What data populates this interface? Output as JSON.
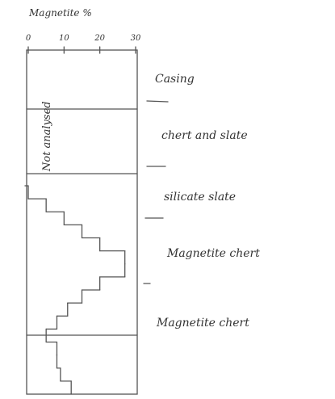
{
  "chart_data": {
    "type": "step",
    "title": "Magnetite %",
    "annotation": "Not analysed",
    "zones": [
      "Casing",
      "chert and slate",
      "silicate slate",
      "Magnetite chert",
      "Magnetite chert"
    ],
    "categories": [
      null,
      null,
      null,
      null,
      null,
      null,
      null,
      null,
      null,
      null,
      null,
      null,
      null,
      null,
      null,
      null
    ],
    "values": [
      0,
      5,
      10,
      15,
      20,
      27,
      27,
      20,
      15,
      11,
      8,
      5,
      8,
      8,
      9,
      12
    ],
    "color": "#444444",
    "xlim": [
      0,
      30
    ],
    "xticks": [
      0,
      10,
      20,
      30
    ]
  }
}
